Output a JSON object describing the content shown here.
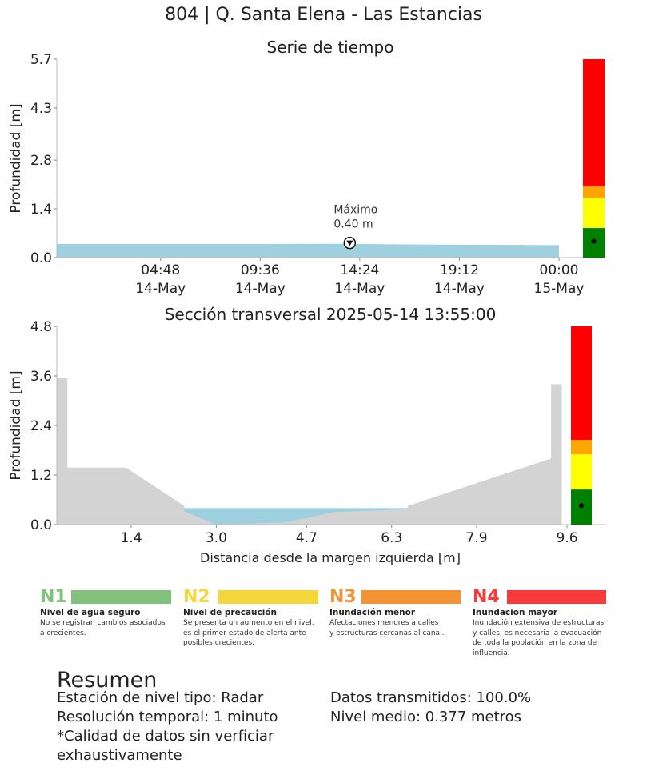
{
  "title": "804 | Q. Santa Elena - Las Estancias",
  "timeseries": {
    "title": "Serie de tiempo",
    "ylabel": "Profundidad [m]",
    "annotation": "Máximo\n0.40 m"
  },
  "cross_section": {
    "title": "Sección transversal 2025-05-14 13:55:00",
    "ylabel": "Profundidad [m]",
    "xlabel": "Distancia desde la margen izquierda [m]"
  },
  "chart_data": [
    {
      "type": "area",
      "title": "Serie de tiempo",
      "ylabel": "Profundidad [m]",
      "ylim": [
        0,
        5.7
      ],
      "yticks": [
        0.0,
        1.4,
        2.8,
        4.3,
        5.7
      ],
      "ytick_labels": [
        "0.0",
        "1.4",
        "2.8",
        "4.3",
        "5.7"
      ],
      "xlim": [
        "2025-05-13 23:48",
        "2025-05-15 00:00"
      ],
      "xticks": [
        "2025-05-14 04:48",
        "2025-05-14 09:36",
        "2025-05-14 14:24",
        "2025-05-14 19:12",
        "2025-05-15 00:00"
      ],
      "xtick_labels": [
        [
          "04:48",
          "14-May"
        ],
        [
          "09:36",
          "14-May"
        ],
        [
          "14:24",
          "14-May"
        ],
        [
          "19:12",
          "14-May"
        ],
        [
          "00:00",
          "15-May"
        ]
      ],
      "series": [
        {
          "x": [
            "2025-05-13 23:48",
            "2025-05-14 04:48",
            "2025-05-14 09:36",
            "2025-05-14 13:55",
            "2025-05-14 14:24",
            "2025-05-14 19:12",
            "2025-05-15 00:00"
          ],
          "y": [
            0.39,
            0.39,
            0.39,
            0.4,
            0.39,
            0.37,
            0.36
          ]
        }
      ],
      "max_point": {
        "x": "2025-05-14 13:55",
        "y": 0.4
      },
      "alert_levels": [
        0.85,
        1.7,
        2.05,
        5.7
      ],
      "current_level": 0.4,
      "alert_colors": [
        "#008000",
        "#ffff00",
        "#ffa500",
        "#ff0000"
      ],
      "grid": false
    },
    {
      "type": "area",
      "title": "Sección transversal 2025-05-14 13:55:00",
      "xlabel": "Distancia desde la margen izquierda [m]",
      "ylabel": "Profundidad [m]",
      "xlim": [
        0,
        9.9
      ],
      "ylim": [
        0,
        4.8
      ],
      "xticks": [
        1.4,
        3.0,
        4.7,
        6.3,
        7.9,
        9.6
      ],
      "xtick_labels": [
        "1.4",
        "3.0",
        "4.7",
        "6.3",
        "7.9",
        "9.6"
      ],
      "yticks": [
        0.0,
        1.2,
        2.4,
        3.6,
        4.8
      ],
      "ytick_labels": [
        "0.0",
        "1.2",
        "2.4",
        "3.6",
        "4.8"
      ],
      "terrain": {
        "x": [
          0,
          0.2,
          0.2,
          1.3,
          2.4,
          2.4,
          3.0,
          4.3,
          5.2,
          6.6,
          6.6,
          9.3,
          9.3,
          9.5,
          9.5
        ],
        "y": [
          3.55,
          3.55,
          1.38,
          1.38,
          0.45,
          0.32,
          0.0,
          0.05,
          0.3,
          0.37,
          0.45,
          1.6,
          3.4,
          3.4,
          0.0
        ]
      },
      "water_level": 0.4,
      "water_extent": [
        2.4,
        6.6
      ],
      "alert_levels": [
        0.85,
        1.7,
        2.05,
        4.8
      ],
      "current_level": 0.4,
      "alert_colors": [
        "#008000",
        "#ffff00",
        "#ffa500",
        "#ff0000"
      ],
      "grid": false
    }
  ],
  "legend": [
    {
      "code": "N1",
      "name": "Nivel de agua seguro",
      "desc": "No se registran cambios asociados\na crecientes.",
      "color": "#82c17c"
    },
    {
      "code": "N2",
      "name": "Nivel de precaución",
      "desc": "Se presenta un aumento en el nivel,\nes el primer estado de alerta ante\nposibles crecientes.",
      "color": "#f5d73c"
    },
    {
      "code": "N3",
      "name": "Inundación menor",
      "desc": "Afectaciones menores a calles\ny estructuras cercanas al canal.",
      "color": "#f39434"
    },
    {
      "code": "N4",
      "name": "Inundacion mayor",
      "desc": "Inundación extensiva de estructuras\ny calles, es necesaria la evacuación\nde toda la población en la zona de\ninfluencia.",
      "color": "#f83a3a"
    }
  ],
  "summary": {
    "title": "Resumen",
    "left": [
      "Estación de nivel tipo: Radar",
      "Resolución temporal: 1 minuto",
      "*Calidad de datos sin verficiar",
      "exhaustivamente"
    ],
    "right": [
      "Datos transmitidos: 100.0%",
      "Nivel medio: 0.377 metros"
    ]
  }
}
